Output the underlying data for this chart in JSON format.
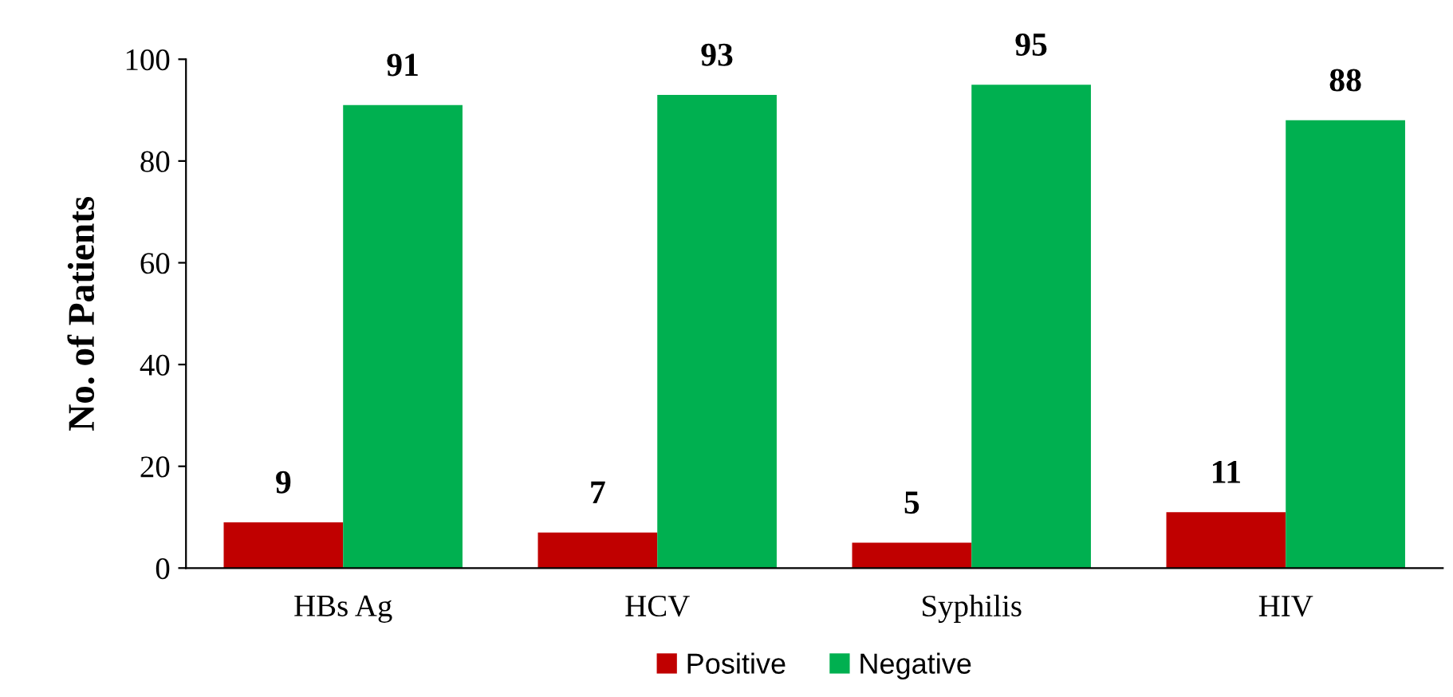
{
  "chart_data": {
    "type": "bar",
    "ylabel": "No. of Patients",
    "categories": [
      "HBs Ag",
      "HCV",
      "Syphilis",
      "HIV"
    ],
    "series": [
      {
        "name": "Positive",
        "color": "#c00000",
        "values": [
          9,
          7,
          5,
          11
        ]
      },
      {
        "name": "Negative",
        "color": "#00b050",
        "values": [
          91,
          93,
          95,
          88
        ]
      }
    ],
    "ylim": [
      0,
      100
    ],
    "yticks": [
      0,
      20,
      40,
      60,
      80,
      100
    ],
    "data_labels": true,
    "grid": false,
    "legend": "bottom"
  }
}
